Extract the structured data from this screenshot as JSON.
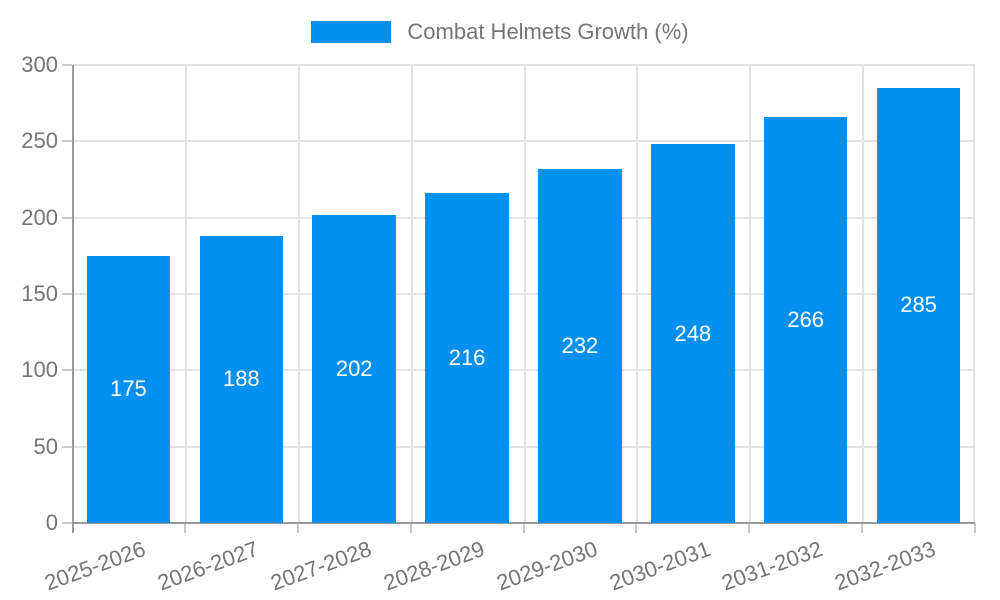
{
  "chart_data": {
    "type": "bar",
    "legend": "Combat Helmets Growth (%)",
    "legend_position": "top-center",
    "categories": [
      "2025-2026",
      "2026-2027",
      "2027-2028",
      "2028-2029",
      "2029-2030",
      "2030-2031",
      "2031-2032",
      "2032-2033"
    ],
    "values": [
      175,
      188,
      202,
      216,
      232,
      248,
      266,
      285
    ],
    "ylim": [
      0,
      300
    ],
    "ytick_step": 50,
    "ytick_labels": [
      "0",
      "50",
      "100",
      "150",
      "200",
      "250",
      "300"
    ],
    "grid": true,
    "bar_labels_inside": true,
    "colors": {
      "bar": "#0490f2",
      "bar_label": "#ffffff",
      "axis_text": "#757575",
      "legend_text": "#757575",
      "grid": "#e2e2e2",
      "axis_line": "#9a9a9a",
      "tick": "#c9c9c9",
      "background": "#ffffff"
    }
  }
}
